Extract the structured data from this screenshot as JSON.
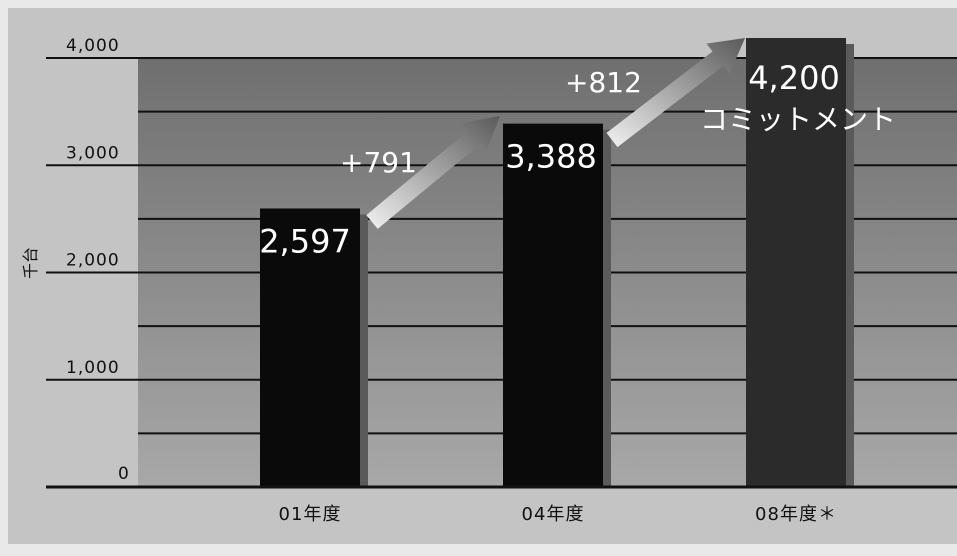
{
  "chart_data": {
    "type": "bar",
    "title": "",
    "xlabel": "",
    "ylabel": "千台",
    "ylim": [
      0,
      4000
    ],
    "yticks": [
      0,
      1000,
      2000,
      3000,
      4000
    ],
    "ytick_labels": [
      "0",
      "1,000",
      "2,000",
      "3,000",
      "4,000"
    ],
    "categories": [
      "01年度",
      "04年度",
      "08年度＊"
    ],
    "values": [
      2597,
      3388,
      4200
    ],
    "value_labels": [
      "2,597",
      "3,388",
      "4,200"
    ],
    "bar_notes": [
      "",
      "",
      "コミットメント"
    ],
    "increments": [
      {
        "from": 0,
        "to": 1,
        "label": "+791"
      },
      {
        "from": 1,
        "to": 2,
        "label": "+812"
      }
    ],
    "grid": true,
    "colors": {
      "bar": "#0a0a0a",
      "bar_highlight": "#2b2b2b",
      "bar_shadow": "#5a5a5a",
      "plot_background_top": "#6f6f6f",
      "plot_background_bottom": "#a8a8a8",
      "outer_background": "#c4c4c4",
      "gridline": "#111111",
      "arrow_light": "#f2f2f2",
      "arrow_dark": "#5a5a5a",
      "value_label": "#ffffff",
      "tick_label": "#111111"
    }
  }
}
